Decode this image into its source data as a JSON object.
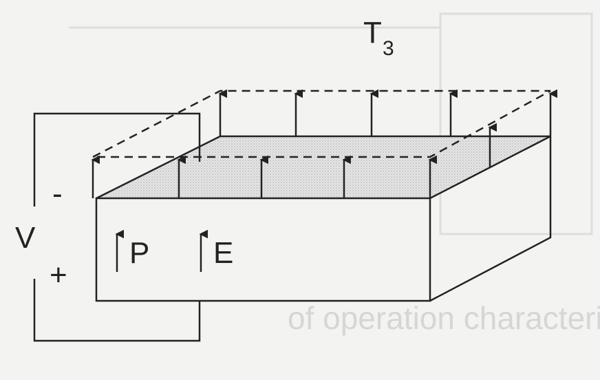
{
  "labels": {
    "stress": "T",
    "stress_subscript": "3",
    "voltage": "V",
    "minus": "-",
    "plus": "+",
    "polarization": "P",
    "field": "E"
  },
  "bleed_text": "of operation characterized by:"
}
